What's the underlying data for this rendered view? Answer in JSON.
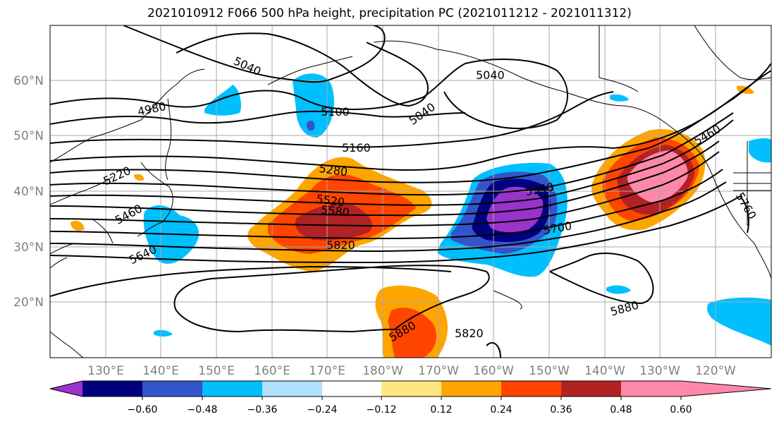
{
  "title": "2021010912 F066 500 hPa height, precipitation PC (2021011212 - 2021011312)",
  "latitude_labels": [
    "60°N",
    "50°N",
    "40°N",
    "30°N",
    "20°N"
  ],
  "longitude_labels": [
    "130°E",
    "140°E",
    "150°E",
    "160°E",
    "170°E",
    "180°W",
    "170°W",
    "160°W",
    "150°W",
    "140°W",
    "130°W",
    "120°W"
  ],
  "contour_labels": [
    "5040",
    "5040",
    "5040",
    "4980",
    "5100",
    "5160",
    "5220",
    "5280",
    "5340",
    "5460",
    "5460",
    "5520",
    "5580",
    "5640",
    "5700",
    "5760",
    "5820",
    "5820",
    "5880",
    "5880"
  ],
  "colorbar": {
    "tick_labels": [
      "−0.60",
      "−0.48",
      "−0.36",
      "−0.24",
      "−0.12",
      "0.12",
      "0.24",
      "0.36",
      "0.48",
      "0.60"
    ],
    "colors": [
      "#9933cc",
      "#000080",
      "#3355cc",
      "#00bfff",
      "#b0e0ff",
      "#ffffff",
      "#ffe680",
      "#ffa500",
      "#ff4500",
      "#b22222",
      "#ff88aa"
    ]
  }
}
